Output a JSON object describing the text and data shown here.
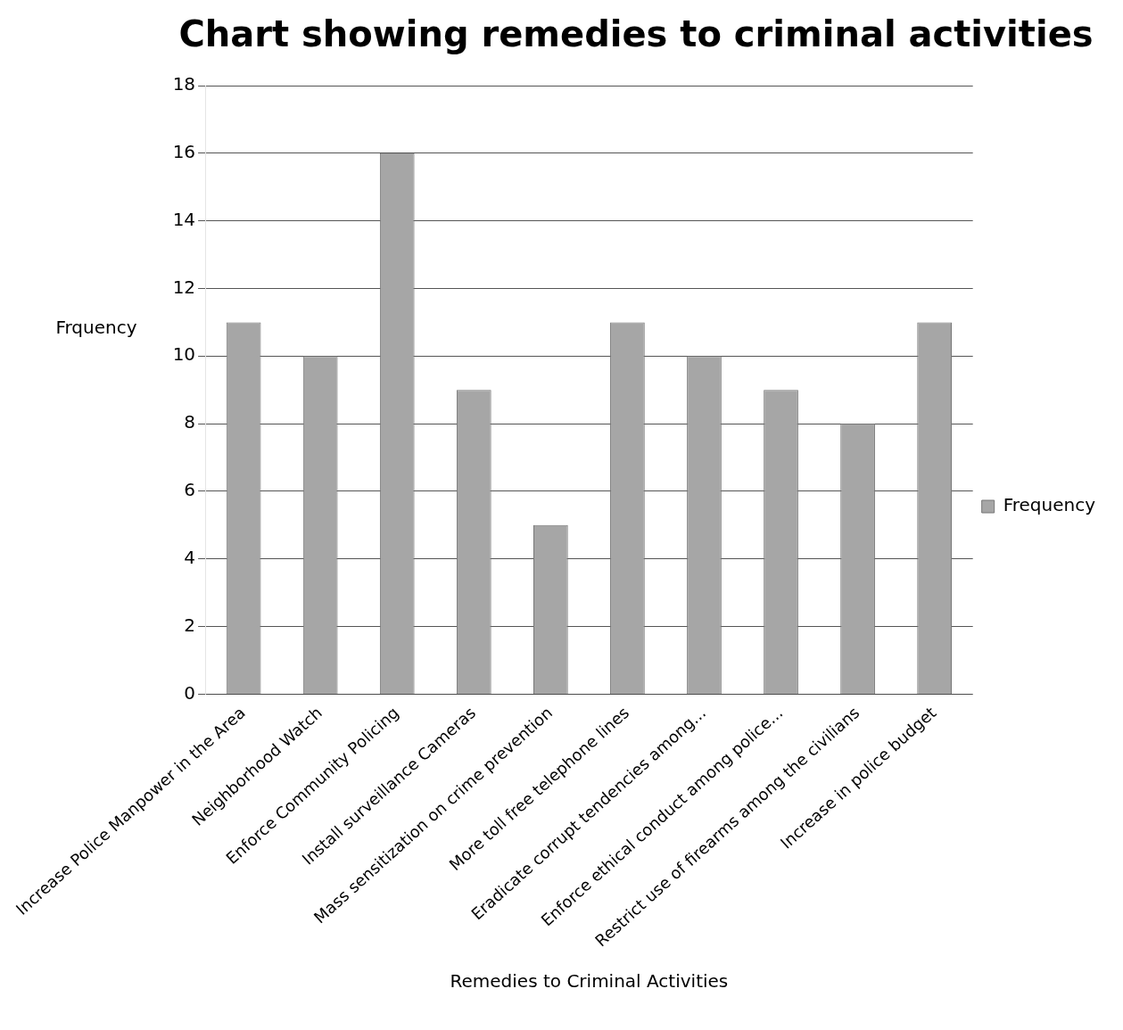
{
  "chart_data": {
    "type": "bar",
    "title": "Chart showing remedies to criminal activities",
    "xlabel": "Remedies to Criminal Activities",
    "ylabel": "Frquency",
    "categories": [
      "Increase Police Manpower in the Area",
      "Neighborhood Watch",
      "Enforce Community Policing",
      "Install surveillance Cameras",
      "Mass sensitization on crime prevention",
      "More toll free telephone lines",
      "Eradicate corrupt tendencies among...",
      "Enforce ethical conduct among police...",
      "Restrict use of firearms among the civilians",
      "Increase in police budget"
    ],
    "series": [
      {
        "name": "Frequency",
        "color": "#a6a6a6",
        "values": [
          11,
          10,
          16,
          9,
          5,
          11,
          10,
          9,
          8,
          11
        ]
      }
    ],
    "ylim": [
      0,
      18
    ],
    "yticks": [
      0,
      2,
      4,
      6,
      8,
      10,
      12,
      14,
      16,
      18
    ],
    "grid": "y",
    "legend": "right"
  }
}
